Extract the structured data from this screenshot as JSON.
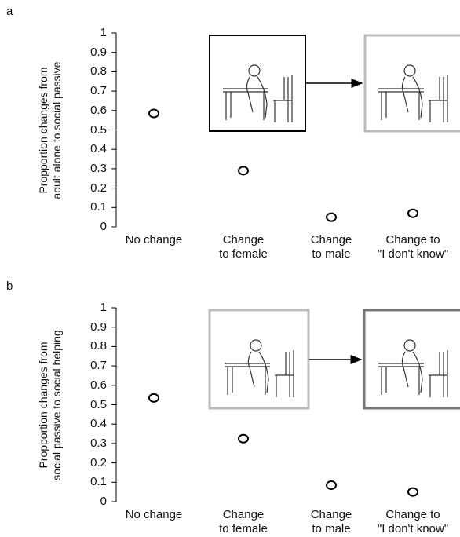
{
  "chart_data": [
    {
      "type": "point",
      "panel_label": "a",
      "y_label": "Propportion changes from\nadult alone to social passive",
      "categories": [
        "No change",
        "Change\nto female",
        "Change\nto male",
        "Change to\n\"I don't know\""
      ],
      "values": [
        0.585,
        0.29,
        0.05,
        0.07
      ],
      "color": "#000000",
      "ylim": [
        0,
        1
      ],
      "yticks": [
        0,
        0.1,
        0.2,
        0.3,
        0.4,
        0.5,
        0.6,
        0.7,
        0.8,
        0.9,
        1
      ]
    },
    {
      "type": "point",
      "panel_label": "b",
      "y_label": "Propportion changes from\nsocial passive to social helping",
      "categories": [
        "No change",
        "Change\nto female",
        "Change\nto male",
        "Change to\n\"I don't know\""
      ],
      "values": [
        0.535,
        0.325,
        0.085,
        0.05
      ],
      "color": "#000000",
      "ylim": [
        0,
        1
      ],
      "yticks": [
        0,
        0.1,
        0.2,
        0.3,
        0.4,
        0.5,
        0.6,
        0.7,
        0.8,
        0.9,
        1
      ]
    }
  ]
}
